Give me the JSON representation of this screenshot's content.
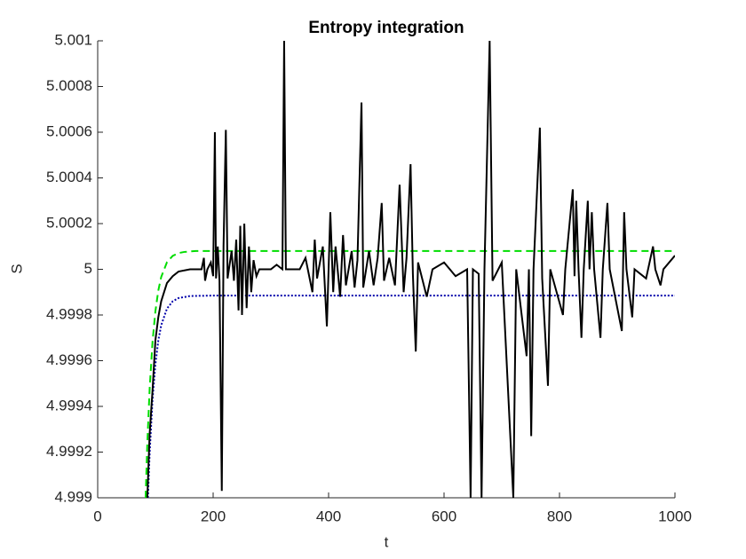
{
  "chart_data": {
    "type": "line",
    "title": "Entropy integration",
    "x_label": "t",
    "y_label": "S",
    "xlim": [
      0,
      1000
    ],
    "xticks": [
      0,
      200,
      400,
      600,
      800,
      1000
    ],
    "ylim": [
      4.999,
      5.001
    ],
    "yticks": [
      4.999,
      4.9992,
      4.9994,
      4.9996,
      4.9998,
      5,
      5.0002,
      5.0004,
      5.0006,
      5.0008,
      5.001
    ],
    "series": [
      {
        "color": "#00dd00",
        "dash": "dashed",
        "x": [
          83,
          86,
          90,
          95,
          100,
          105,
          110,
          120,
          130,
          140,
          150,
          170,
          1000
        ],
        "values": [
          4.999,
          4.999239,
          4.999477,
          4.999683,
          4.999817,
          4.999907,
          4.999966,
          5.000031,
          5.000059,
          5.000071,
          5.000076,
          5.00008,
          5.00008
        ]
      },
      {
        "color": "#0000aa",
        "dash": "dotted",
        "x": [
          87,
          90,
          95,
          100,
          105,
          110,
          120,
          130,
          140,
          160,
          200,
          1000
        ],
        "values": [
          4.999,
          4.999196,
          4.999431,
          4.999585,
          4.999688,
          4.999755,
          4.999828,
          4.99986,
          4.999874,
          4.999883,
          4.999885,
          4.999885
        ]
      },
      {
        "color": "#000000",
        "dash": "solid",
        "x": [
          86,
          90,
          95,
          100,
          105,
          110,
          120,
          130,
          140,
          160,
          180,
          184,
          186,
          190,
          196,
          200,
          203,
          205,
          208,
          211,
          215,
          218,
          222,
          225,
          232,
          236,
          240,
          244,
          247,
          250,
          254,
          258,
          262,
          266,
          270,
          275,
          280,
          300,
          310,
          320,
          323,
          326,
          350,
          360,
          372,
          376,
          380,
          390,
          397,
          403,
          408,
          412,
          420,
          425,
          430,
          440,
          445,
          450,
          457,
          460,
          470,
          478,
          485,
          492,
          496,
          505,
          515,
          523,
          530,
          535,
          542,
          546,
          551,
          555,
          570,
          580,
          600,
          620,
          640,
          646,
          650,
          660,
          665,
          670,
          679,
          684,
          700,
          720,
          725,
          743,
          747,
          751,
          755,
          766,
          770,
          780,
          784,
          806,
          810,
          823,
          826,
          829,
          833,
          838,
          842,
          849,
          852,
          856,
          860,
          871,
          875,
          883,
          887,
          908,
          912,
          916,
          926,
          930,
          950,
          962,
          966,
          975,
          980,
          1000
        ],
        "values": [
          4.999,
          4.99928,
          4.99947,
          4.99969,
          4.99979,
          4.99986,
          4.99994,
          4.99997,
          4.99999,
          5,
          5,
          5.00005,
          4.99995,
          5,
          5.00003,
          4.99997,
          5.0006,
          4.99996,
          5.0001,
          4.99995,
          4.99903,
          5.0001,
          5.00061,
          4.99996,
          5.00008,
          4.99995,
          5.00013,
          4.99982,
          5.00019,
          4.9998,
          5.0002,
          4.99983,
          5.0001,
          4.9999,
          5.00004,
          4.99997,
          5,
          5,
          5.00002,
          5,
          5.001,
          5,
          5,
          5.00005,
          4.9999,
          5.00013,
          4.99996,
          5.0001,
          4.99975,
          5.00025,
          4.9999,
          5.0001,
          4.99988,
          5.00015,
          4.99993,
          5.00008,
          4.99992,
          5.00004,
          5.00073,
          4.99992,
          5.00008,
          4.99993,
          5.00005,
          5.00029,
          4.99995,
          5.00005,
          4.99993,
          5.00037,
          4.9999,
          5.00005,
          5.00046,
          4.99998,
          4.99964,
          5.00003,
          4.99988,
          5,
          5.00003,
          4.99997,
          5,
          4.999,
          5,
          4.99998,
          4.999,
          5,
          5.001,
          4.99995,
          5.00003,
          4.999,
          5,
          4.99962,
          5,
          4.99927,
          5,
          5.00062,
          4.99996,
          4.99949,
          5,
          4.9998,
          5,
          5.00035,
          4.99997,
          5.0003,
          5,
          4.9997,
          5,
          5.0003,
          5,
          5.00025,
          5,
          4.9997,
          5,
          5.00029,
          5,
          4.99973,
          5.00025,
          5,
          4.99979,
          5,
          4.99996,
          5.0001,
          5,
          4.99993,
          5,
          5.00006
        ]
      }
    ]
  }
}
